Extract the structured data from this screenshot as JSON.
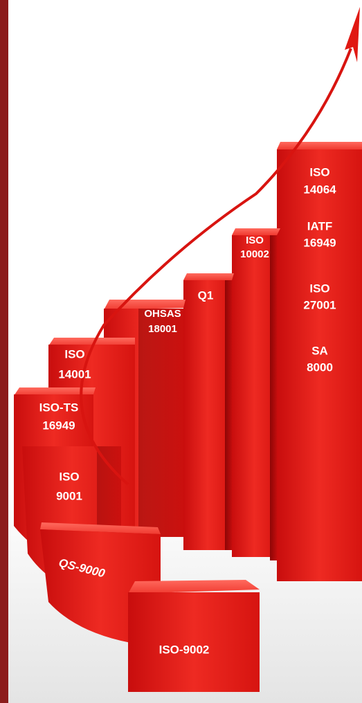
{
  "blocks": [
    {
      "lines": [
        "ISO",
        "14064"
      ]
    },
    {
      "lines": [
        "IATF",
        "16949"
      ]
    },
    {
      "lines": [
        "ISO",
        "27001"
      ]
    },
    {
      "lines": [
        "SA",
        "8000"
      ]
    },
    {
      "lines": [
        "ISO",
        "10002"
      ]
    },
    {
      "lines": [
        "Q1"
      ]
    },
    {
      "lines": [
        "OHSAS",
        "18001"
      ]
    },
    {
      "lines": [
        "ISO",
        "14001"
      ]
    },
    {
      "lines": [
        "ISO-TS",
        "16949"
      ]
    },
    {
      "lines": [
        "ISO",
        "9001"
      ]
    },
    {
      "lines": [
        "QS-9000"
      ]
    },
    {
      "lines": [
        "ISO-9002"
      ]
    }
  ]
}
